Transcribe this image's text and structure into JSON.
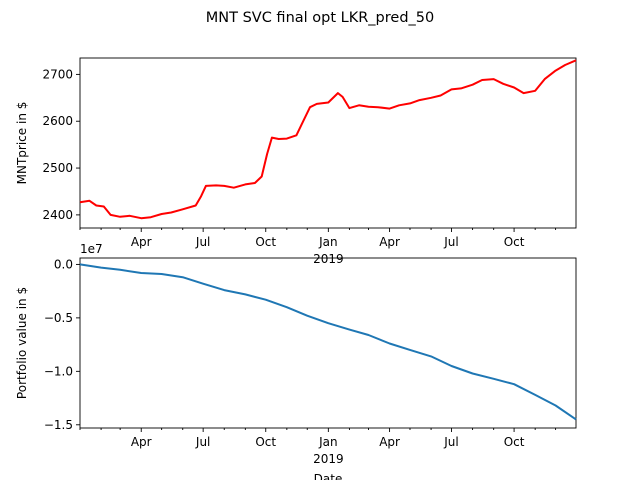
{
  "figure_title": "MNT SVC final opt LKR_pred_50",
  "chart_data": [
    {
      "type": "line",
      "ylabel": "MNTprice in $",
      "xlabel": "",
      "x_ticks_major": [
        "Apr",
        "Jul",
        "Oct",
        "Jan",
        "Apr",
        "Jul",
        "Oct"
      ],
      "year_label": "2019",
      "x_range": [
        "2018-01-01",
        "2019-12-31"
      ],
      "ylim": [
        2372,
        2735
      ],
      "yticks": [
        2400,
        2500,
        2600,
        2700
      ],
      "line_color": "#ff0000",
      "series": [
        {
          "x": [
            "2018-01-01",
            "2018-01-15",
            "2018-01-25",
            "2018-02-05",
            "2018-02-15",
            "2018-03-01",
            "2018-03-15",
            "2018-04-01",
            "2018-04-15",
            "2018-05-01",
            "2018-05-15",
            "2018-06-01",
            "2018-06-20",
            "2018-06-28",
            "2018-07-05",
            "2018-07-20",
            "2018-08-01",
            "2018-08-15",
            "2018-09-01",
            "2018-09-15",
            "2018-09-25",
            "2018-10-03",
            "2018-10-10",
            "2018-10-20",
            "2018-11-01",
            "2018-11-15",
            "2018-11-25",
            "2018-12-05",
            "2018-12-15",
            "2019-01-01",
            "2019-01-15",
            "2019-01-22",
            "2019-02-01",
            "2019-02-15",
            "2019-03-01",
            "2019-03-15",
            "2019-04-01",
            "2019-04-15",
            "2019-05-01",
            "2019-05-15",
            "2019-06-01",
            "2019-06-15",
            "2019-07-01",
            "2019-07-15",
            "2019-08-01",
            "2019-08-15",
            "2019-09-01",
            "2019-09-15",
            "2019-10-01",
            "2019-10-15",
            "2019-11-01",
            "2019-11-15",
            "2019-12-01",
            "2019-12-15",
            "2019-12-31"
          ],
          "y": [
            2427,
            2430,
            2420,
            2418,
            2400,
            2396,
            2398,
            2393,
            2395,
            2402,
            2405,
            2412,
            2420,
            2440,
            2462,
            2463,
            2462,
            2458,
            2465,
            2468,
            2482,
            2530,
            2565,
            2562,
            2563,
            2570,
            2600,
            2630,
            2637,
            2640,
            2660,
            2652,
            2628,
            2634,
            2631,
            2630,
            2627,
            2634,
            2638,
            2645,
            2650,
            2655,
            2668,
            2670,
            2678,
            2688,
            2690,
            2680,
            2672,
            2660,
            2665,
            2690,
            2708,
            2720,
            2730
          ]
        }
      ]
    },
    {
      "type": "line",
      "ylabel": "Portfolio value in $",
      "xlabel": "Date",
      "offset_label": "1e7",
      "x_ticks_major": [
        "Apr",
        "Jul",
        "Oct",
        "Jan",
        "Apr",
        "Jul",
        "Oct"
      ],
      "year_label": "2019",
      "x_range": [
        "2018-01-01",
        "2019-12-31"
      ],
      "ylim": [
        -1.53,
        0.06
      ],
      "yticks": [
        0.0,
        -0.5,
        -1.0,
        -1.5
      ],
      "ytick_labels": [
        "0.0",
        "−0.5",
        "−1.0",
        "−1.5"
      ],
      "line_color": "#1f77b4",
      "series": [
        {
          "x": [
            "2018-01-01",
            "2018-02-01",
            "2018-03-01",
            "2018-04-01",
            "2018-05-01",
            "2018-06-01",
            "2018-07-01",
            "2018-08-01",
            "2018-09-01",
            "2018-10-01",
            "2018-11-01",
            "2018-12-01",
            "2019-01-01",
            "2019-02-01",
            "2019-03-01",
            "2019-04-01",
            "2019-05-01",
            "2019-06-01",
            "2019-07-01",
            "2019-08-01",
            "2019-09-01",
            "2019-10-01",
            "2019-11-01",
            "2019-12-01",
            "2019-12-31"
          ],
          "y": [
            0.0,
            -0.03,
            -0.05,
            -0.08,
            -0.09,
            -0.12,
            -0.18,
            -0.24,
            -0.28,
            -0.33,
            -0.4,
            -0.48,
            -0.55,
            -0.61,
            -0.66,
            -0.74,
            -0.8,
            -0.86,
            -0.95,
            -1.02,
            -1.07,
            -1.12,
            -1.22,
            -1.32,
            -1.45
          ]
        }
      ]
    }
  ]
}
